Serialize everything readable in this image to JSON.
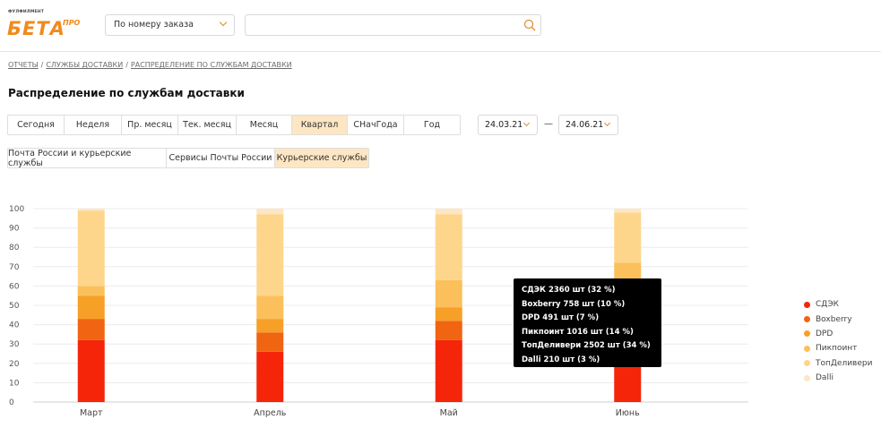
{
  "header": {
    "logo_sup": "ФУЛФИЛМЕНТ",
    "logo_main": "БЕТА",
    "logo_pro": "ПРО",
    "order_select": "По номеру заказа",
    "search_value": "",
    "search_placeholder": ""
  },
  "breadcrumb": {
    "items": [
      "ОТЧЕТЫ",
      "СЛУЖБЫ ДОСТАВКИ",
      "РАСПРЕДЕЛЕНИЕ ПО СЛУЖБАМ ДОСТАВКИ"
    ]
  },
  "page_title": "Распределение по службам доставки",
  "periods": [
    {
      "label": "Сегодня"
    },
    {
      "label": "Неделя"
    },
    {
      "label": "Пр. месяц"
    },
    {
      "label": "Тек. месяц"
    },
    {
      "label": "Месяц"
    },
    {
      "label": "Квартал",
      "active": true
    },
    {
      "label": "СНачГода"
    },
    {
      "label": "Год"
    }
  ],
  "date_from": "24.03.21",
  "date_sep": "—",
  "date_to": "24.06.21",
  "services": [
    {
      "label": "Почта России и курьерские службы"
    },
    {
      "label": "Сервисы Почты России"
    },
    {
      "label": "Курьерские службы",
      "active": true
    }
  ],
  "chart_data": {
    "type": "bar",
    "stacked": true,
    "categories": [
      "Март",
      "Апрель",
      "Май",
      "Июнь"
    ],
    "ylim": [
      0,
      100
    ],
    "yticks": [
      "0",
      "10",
      "20",
      "30",
      "40",
      "50",
      "60",
      "70",
      "80",
      "90",
      "100"
    ],
    "grid": true,
    "legend_position": "right",
    "series": [
      {
        "name": "СДЭК",
        "color": "#f5250a",
        "values": [
          32,
          26,
          32,
          32
        ]
      },
      {
        "name": "Boxberry",
        "color": "#f06412",
        "values": [
          11,
          10,
          10,
          8
        ]
      },
      {
        "name": "DPD",
        "color": "#f7a028",
        "values": [
          12,
          7,
          7,
          12
        ]
      },
      {
        "name": "Пикпоинт",
        "color": "#fbc05c",
        "values": [
          5,
          12,
          14,
          20
        ]
      },
      {
        "name": "ТопДеливери",
        "color": "#fdd68c",
        "values": [
          39,
          42,
          34,
          26
        ]
      },
      {
        "name": "Dalli",
        "color": "#fde6c3",
        "values": [
          1,
          3,
          3,
          2
        ]
      }
    ]
  },
  "tooltip": {
    "lines": [
      "СДЭК 2360 шт (32 %)",
      "Boxberry 758 шт (10 %)",
      "DPD 491 шт (7 %)",
      "Пикпоинт 1016 шт (14 %)",
      "ТопДеливери 2502 шт (34 %)",
      "Dalli 210 шт (3 %)"
    ]
  }
}
